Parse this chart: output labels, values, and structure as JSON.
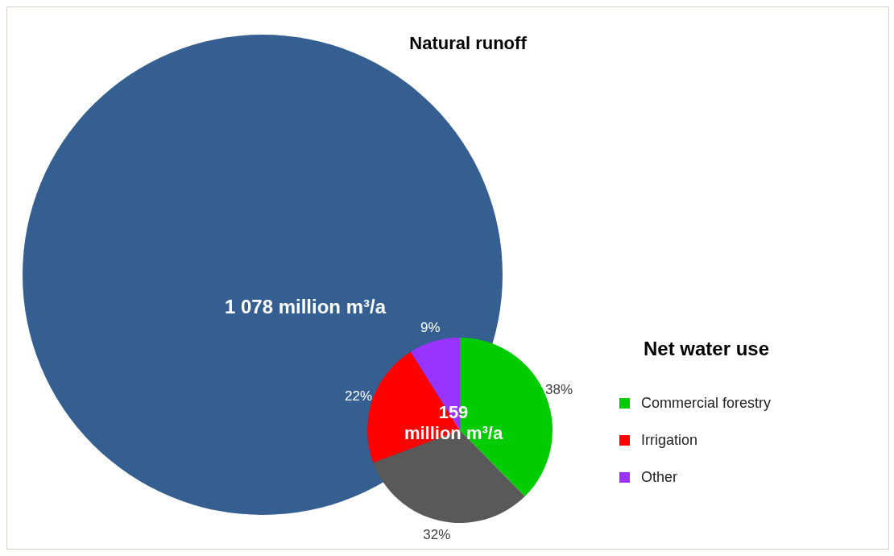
{
  "chart_data": [
    {
      "type": "other",
      "title": "Natural runoff",
      "annotations": [
        "1 078 million m³/a"
      ]
    },
    {
      "type": "pie",
      "legend_title": "Net water use",
      "categories": [
        "Commercial forestry",
        null,
        "Irrigation",
        "Other"
      ],
      "values": [
        38,
        32,
        22,
        9
      ],
      "colors": [
        "#00cc00",
        "#595959",
        "#ff0000",
        "#9933ff"
      ],
      "value_labels": [
        "38%",
        "32%",
        "22%",
        "9%"
      ],
      "annotations": [
        "159 million m³/a"
      ],
      "legend": "right"
    }
  ]
}
